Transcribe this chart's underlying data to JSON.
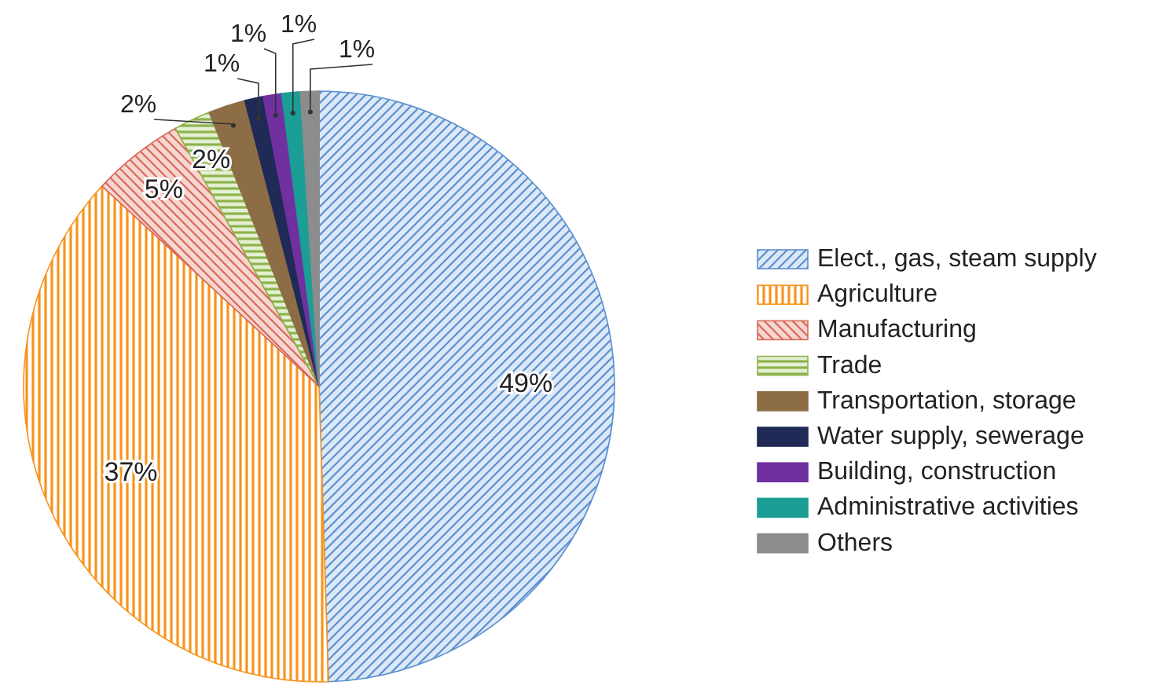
{
  "chart_data": {
    "type": "pie",
    "categories": [
      "Elect., gas, steam supply",
      "Agriculture",
      "Manufacturing",
      "Trade",
      "Transportation, storage",
      "Water supply, sewerage",
      "Building, construction",
      "Administrative activities",
      "Others"
    ],
    "values": [
      49,
      37,
      5,
      2,
      2,
      1,
      1,
      1,
      1
    ],
    "colors": [
      "#5b8fd0",
      "#f7941d",
      "#d9685a",
      "#8db34a",
      "#8c6d46",
      "#1f2a56",
      "#7030a0",
      "#1a9e96",
      "#8c8c8c"
    ],
    "value_labels": [
      "49%",
      "37%",
      "5%",
      "2%",
      "2%",
      "1%",
      "1%",
      "1%",
      "1%"
    ],
    "legend": "right"
  }
}
